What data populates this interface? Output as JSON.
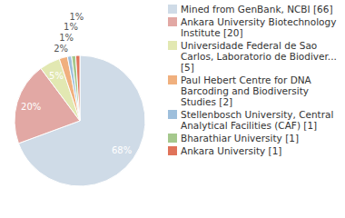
{
  "chart_data": {
    "type": "pie",
    "categories": [
      "Mined from GenBank, NCBI [66]",
      "Ankara University Biotechnology Institute [20]",
      "Universidade Federal de Sao Carlos, Laboratorio de Biodiver... [5]",
      "Paul Hebert Centre for DNA Barcoding and Biodiversity Studies [2]",
      "Stellenbosch University, Central Analytical Facilities (CAF)  [1]",
      "Bharathiar University [1]",
      "Ankara University [1]"
    ],
    "values": [
      68,
      20,
      5,
      2,
      1,
      1,
      1
    ],
    "value_labels": [
      "68%",
      "20%",
      "5%",
      "2%",
      "1%",
      "1%",
      "1%"
    ],
    "colors": [
      "#cfdbe7",
      "#e2a8a4",
      "#e2e8b2",
      "#f0b07e",
      "#9ebfdc",
      "#a5c88d",
      "#e0735a"
    ],
    "data_labels": true,
    "legend": "right"
  }
}
